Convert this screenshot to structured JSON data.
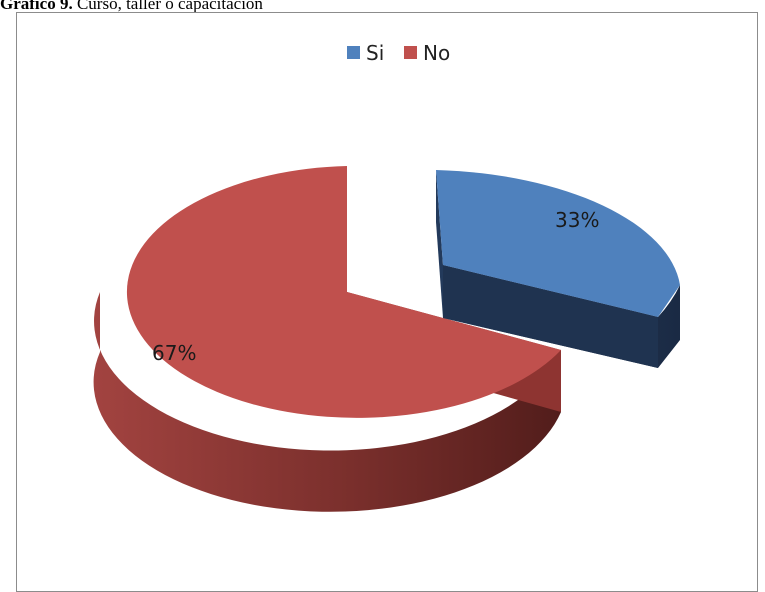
{
  "caption": {
    "number": "Gráfico 9.",
    "text": "Curso, taller o capacitación"
  },
  "chart_data": {
    "type": "pie",
    "title": "",
    "categories": [
      "Si",
      "No"
    ],
    "values": [
      33,
      67
    ],
    "data_labels": [
      "33%",
      "67%"
    ],
    "colors": [
      "#4F81BD",
      "#C0504D"
    ],
    "legend_position": "top",
    "style": "3d-exploded"
  }
}
